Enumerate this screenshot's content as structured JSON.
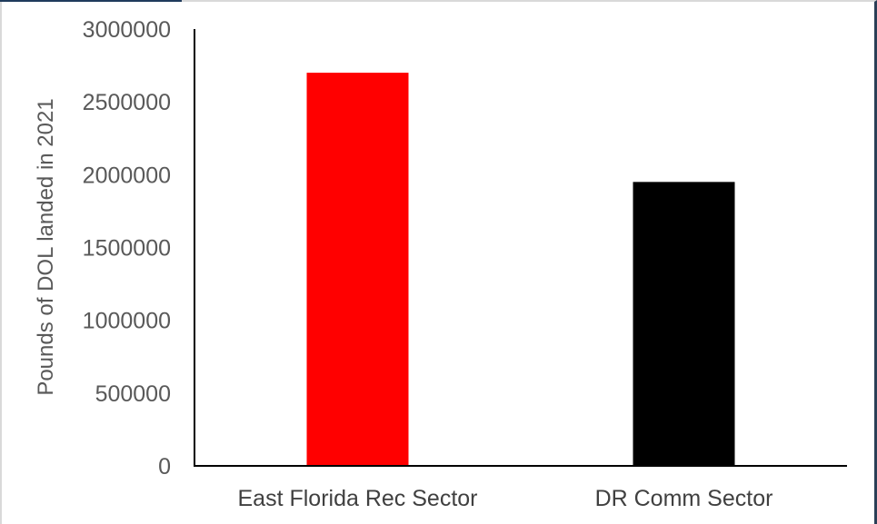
{
  "chart_data": {
    "type": "bar",
    "title": "",
    "xlabel": "",
    "ylabel": "Pounds of DOL landed in 2021",
    "categories": [
      "East Florida Rec Sector",
      "DR Comm Sector"
    ],
    "values": [
      2700000,
      1950000
    ],
    "colors": [
      "#ff0000",
      "#000000"
    ],
    "ylim": [
      0,
      3000000
    ],
    "yticks": [
      0,
      500000,
      1000000,
      1500000,
      2000000,
      2500000,
      3000000
    ],
    "ytick_labels": [
      "0",
      "500000",
      "1000000",
      "1500000",
      "2000000",
      "2500000",
      "3000000"
    ],
    "grid": false,
    "legend": "none"
  }
}
